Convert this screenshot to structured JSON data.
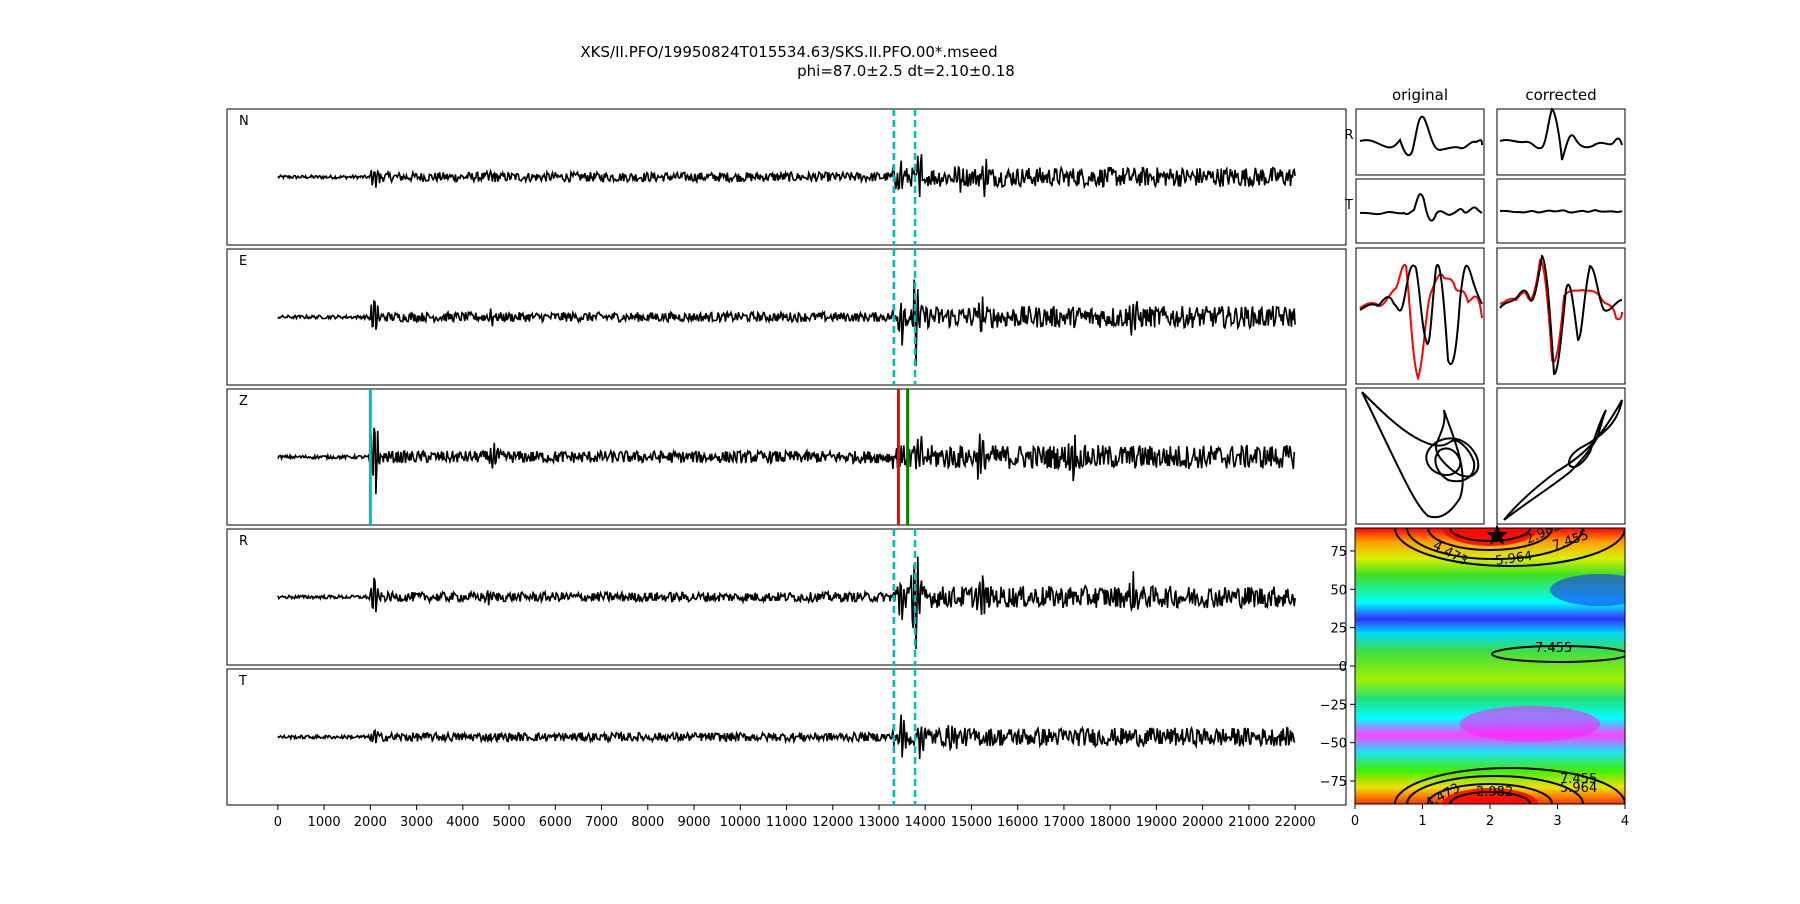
{
  "title": {
    "line1": "XKS/II.PFO/19950824T015534.63/SKS.II.PFO.00*.mseed",
    "line2": "phi=87.0±2.5 dt=2.10±0.18"
  },
  "chart_data": [
    {
      "type": "line",
      "panel": "seismograms",
      "xlim": [
        -1100,
        23100
      ],
      "x_ticks": [
        0,
        1000,
        2000,
        3000,
        4000,
        5000,
        6000,
        7000,
        8000,
        9000,
        10000,
        11000,
        12000,
        13000,
        14000,
        15000,
        16000,
        17000,
        18000,
        19000,
        20000,
        21000,
        22000
      ],
      "x_range_data": [
        0,
        22000
      ],
      "series": [
        {
          "name": "N",
          "bursts": [
            [
              2100,
              0.6
            ],
            [
              4600,
              0.35
            ],
            [
              13450,
              0.9
            ],
            [
              13900,
              1.1
            ],
            [
              14700,
              0.7
            ],
            [
              15300,
              0.6
            ]
          ],
          "noise": 0.22,
          "post_noise": 0.45
        },
        {
          "name": "E",
          "bursts": [
            [
              2100,
              1.0
            ],
            [
              4600,
              0.35
            ],
            [
              13500,
              1.2
            ],
            [
              13800,
              2.2
            ],
            [
              15200,
              0.9
            ],
            [
              18500,
              0.7
            ]
          ],
          "noise": 0.22,
          "post_noise": 0.5
        },
        {
          "name": "Z",
          "bursts": [
            [
              2100,
              2.0
            ],
            [
              4700,
              0.7
            ],
            [
              13850,
              1.2
            ],
            [
              15200,
              1.1
            ],
            [
              17200,
              0.8
            ]
          ],
          "noise": 0.28,
          "post_noise": 0.55
        },
        {
          "name": "R",
          "bursts": [
            [
              2100,
              1.0
            ],
            [
              4600,
              0.35
            ],
            [
              13500,
              1.2
            ],
            [
              13800,
              2.3
            ],
            [
              15200,
              0.9
            ],
            [
              18500,
              0.7
            ]
          ],
          "noise": 0.22,
          "post_noise": 0.5
        },
        {
          "name": "T",
          "bursts": [
            [
              2100,
              0.5
            ],
            [
              13500,
              1.0
            ],
            [
              13900,
              1.1
            ],
            [
              14600,
              0.6
            ]
          ],
          "noise": 0.2,
          "post_noise": 0.42
        }
      ],
      "window_lines": {
        "x": [
          13320,
          13780
        ],
        "panels": [
          "N",
          "E",
          "R",
          "T"
        ],
        "color": "#00bfbf"
      },
      "z_markers": [
        {
          "x": 2000,
          "color": "#00bfbf"
        },
        {
          "x": 13420,
          "color": "#ff0000"
        },
        {
          "x": 13620,
          "color": "#008000"
        }
      ]
    },
    {
      "type": "line",
      "panel": "particle-motion-comparison",
      "column_titles": [
        "original",
        "corrected"
      ],
      "row_labels": [
        "R",
        "T"
      ],
      "rows": [
        "R",
        "T",
        "overlay",
        "particle-motion"
      ],
      "series_colors": {
        "fast": "#000000",
        "slow": "#ff0000"
      }
    },
    {
      "type": "heatmap",
      "panel": "error-surface",
      "xlim": [
        0,
        4
      ],
      "ylim": [
        -90,
        90
      ],
      "x_ticks": [
        0,
        1,
        2,
        3,
        4
      ],
      "y_ticks": [
        75,
        50,
        25,
        0,
        -25,
        -50,
        -75
      ],
      "contour_labels": [
        "2.982",
        "4.473",
        "5.964",
        "7.455",
        "7.455",
        "7.455",
        "5.964",
        "4.473",
        "2.982"
      ],
      "best": {
        "dt": 2.1,
        "phi": 87.0
      }
    }
  ]
}
